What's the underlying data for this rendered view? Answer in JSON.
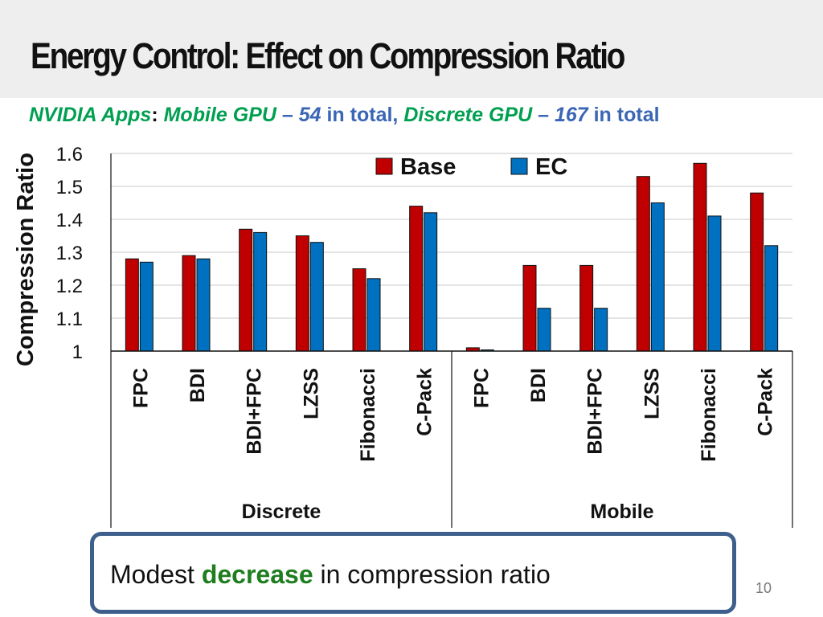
{
  "slide": {
    "title": "Energy Control: Effect on Compression Ratio",
    "subtitle": {
      "apps": "NVIDIA Apps",
      "colon": ":",
      "mobile_label": "Mobile GPU",
      "dash1": "–",
      "mobile_count": "54",
      "in_total_1": "in total,",
      "discrete_label": "Discrete GPU",
      "dash2": "–",
      "discrete_count": "167",
      "in_total_2": "in total"
    },
    "callout": {
      "prefix": "Modest",
      "highlight": "decrease",
      "suffix": "in compression ratio"
    },
    "page_number": "10"
  },
  "colors": {
    "base": "#c00000",
    "ec": "#0070c0",
    "highlight": "#1e7d1e",
    "callout_border": "#3e5f8c"
  },
  "chart_data": {
    "type": "bar",
    "title": "",
    "ylabel": "Compression Ratio",
    "xlabel": "",
    "ylim": [
      1,
      1.6
    ],
    "yticks": [
      "1",
      "1.1",
      "1.2",
      "1.3",
      "1.4",
      "1.5",
      "1.6"
    ],
    "grid": true,
    "legend_position": "top-right",
    "groups": [
      {
        "name": "Discrete",
        "categories": [
          "FPC",
          "BDI",
          "BDI+FPC",
          "LZSS",
          "Fibonacci",
          "C-Pack"
        ]
      },
      {
        "name": "Mobile",
        "categories": [
          "FPC",
          "BDI",
          "BDI+FPC",
          "LZSS",
          "Fibonacci",
          "C-Pack"
        ]
      }
    ],
    "series": [
      {
        "name": "Base",
        "values": [
          1.28,
          1.29,
          1.37,
          1.35,
          1.25,
          1.44,
          1.01,
          1.26,
          1.26,
          1.53,
          1.57,
          1.48
        ]
      },
      {
        "name": "EC",
        "values": [
          1.27,
          1.28,
          1.36,
          1.33,
          1.22,
          1.42,
          1.0,
          1.13,
          1.13,
          1.45,
          1.41,
          1.32
        ]
      }
    ]
  }
}
